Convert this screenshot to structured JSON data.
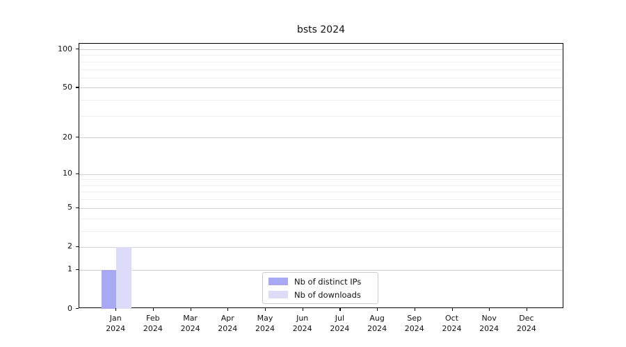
{
  "page": {
    "title": "bsts 2024"
  },
  "chart_data": {
    "type": "bar",
    "title": "bsts 2024",
    "categories": [
      "Jan",
      "Feb",
      "Mar",
      "Apr",
      "May",
      "Jun",
      "Jul",
      "Aug",
      "Sep",
      "Oct",
      "Nov",
      "Dec"
    ],
    "category_year": "2024",
    "series": [
      {
        "name": "Nb of distinct IPs",
        "color": "#a8a8f4",
        "values": [
          1,
          0,
          0,
          0,
          0,
          0,
          0,
          0,
          0,
          0,
          0,
          0
        ]
      },
      {
        "name": "Nb of downloads",
        "color": "#dcdcf8",
        "values": [
          2,
          0,
          0,
          0,
          0,
          0,
          0,
          0,
          0,
          0,
          0,
          0
        ]
      }
    ],
    "y_scale": "log1p",
    "ylim": [
      0,
      110.5
    ],
    "y_ticks": [
      0,
      1,
      2,
      5,
      10,
      20,
      50,
      100
    ],
    "y_minor_gridlines": [
      3,
      4,
      6,
      7,
      8,
      9,
      30,
      40,
      60,
      70,
      80,
      90,
      110
    ],
    "grid": "horizontal-only",
    "legend_position": "lower-center",
    "xlabel": "",
    "ylabel": ""
  },
  "legend": {
    "items": [
      {
        "label": "Nb of distinct IPs",
        "color": "#a8a8f4"
      },
      {
        "label": "Nb of downloads",
        "color": "#dcdcf8"
      }
    ]
  },
  "colors": {
    "axis": "#000000",
    "text": "#111111",
    "grid_major": "#d0d0d0",
    "grid_minor": "#efefef",
    "background": "#ffffff",
    "legend_border": "#cccccc"
  }
}
